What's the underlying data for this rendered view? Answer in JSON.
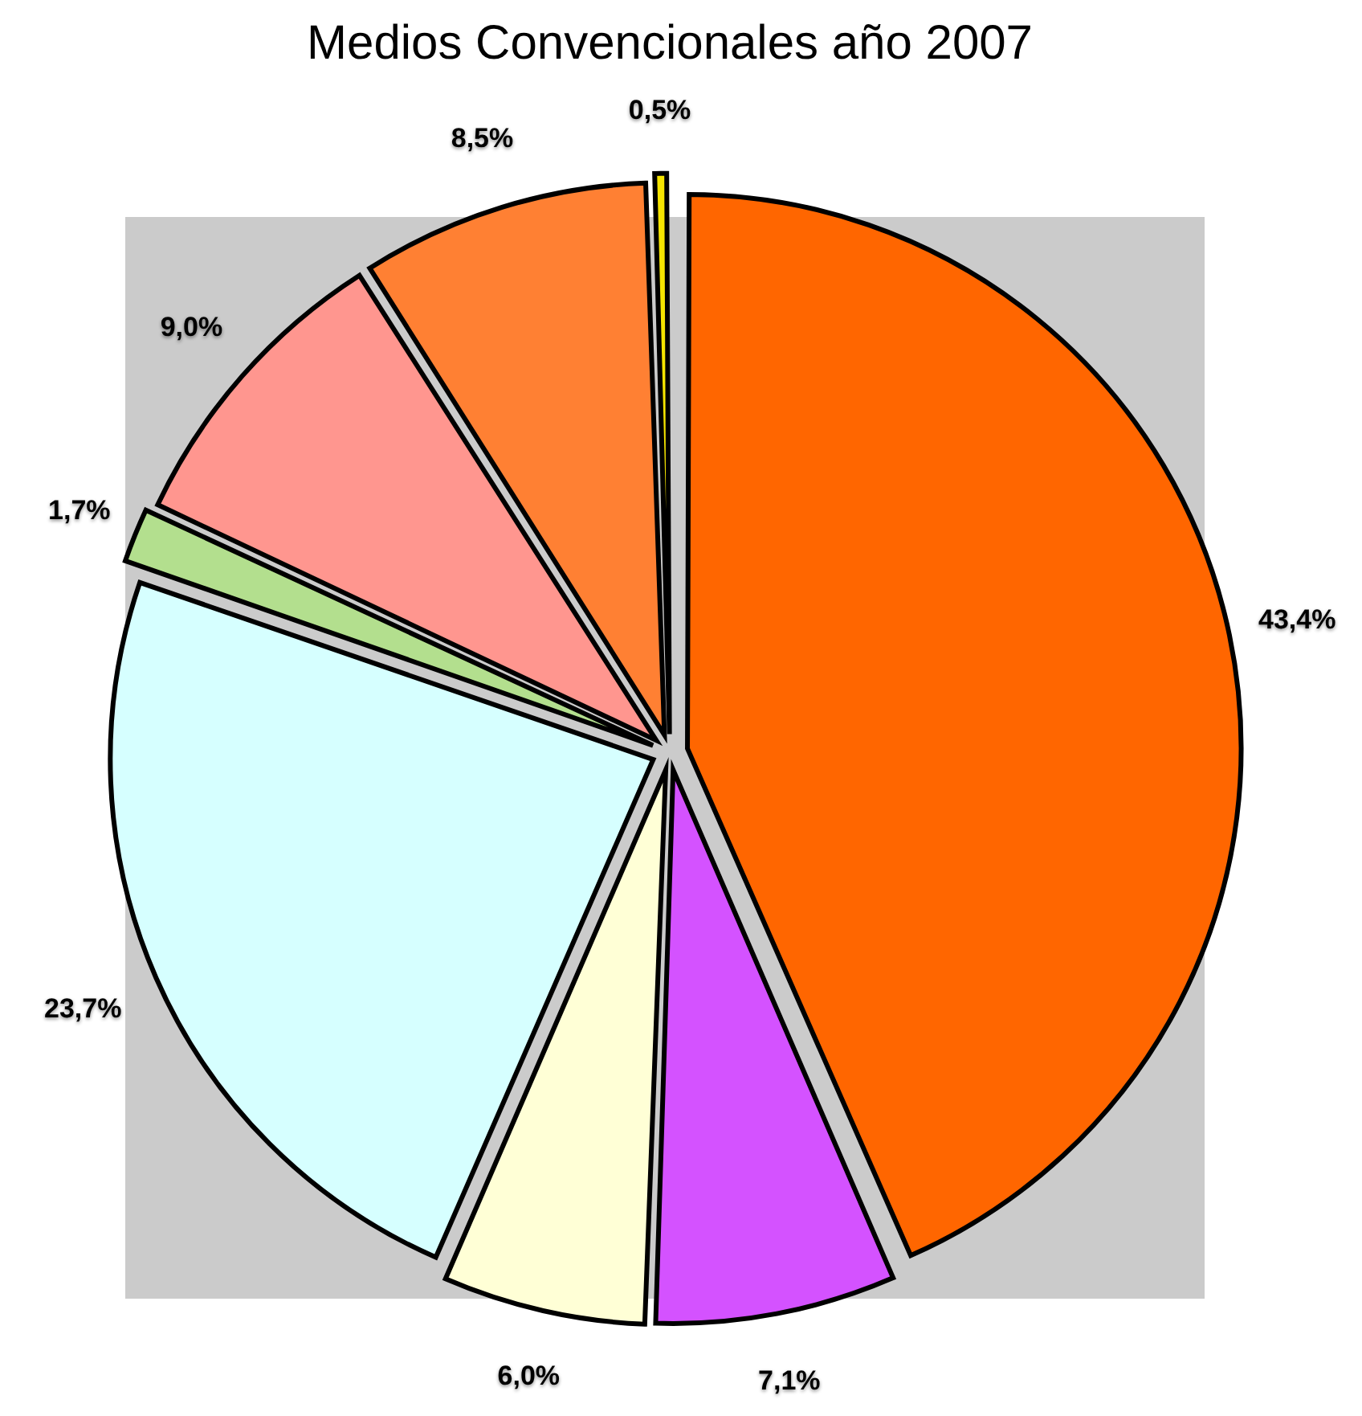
{
  "chart_data": {
    "type": "pie",
    "title": "Medios Convencionales año 2007",
    "categories": [
      null,
      null,
      null,
      null,
      null,
      null,
      null,
      null
    ],
    "values": [
      43.4,
      7.1,
      6.0,
      23.7,
      1.7,
      9.0,
      8.5,
      0.5
    ],
    "colors": [
      "#ff6600",
      "#d452ff",
      "#ffffd6",
      "#d6ffff",
      "#b3df8e",
      "#ff968f",
      "#ff8033",
      "#f5e400"
    ],
    "value_labels": [
      "43,4%",
      "7,1%",
      "6,0%",
      "23,7%",
      "1,7%",
      "9,0%",
      "8,5%",
      "0,5%"
    ]
  }
}
